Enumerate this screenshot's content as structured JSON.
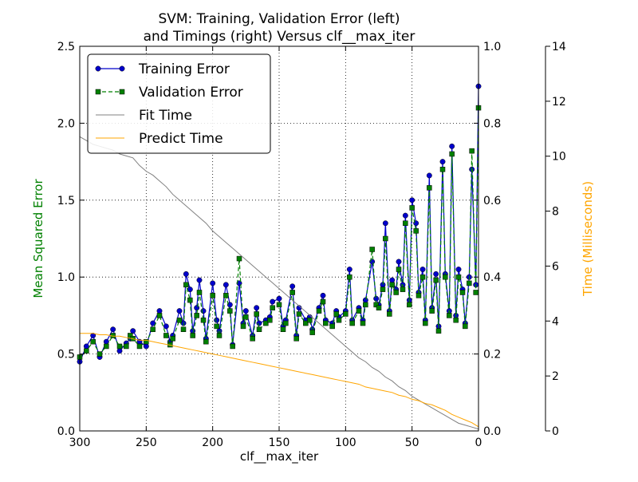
{
  "chart_data": {
    "type": "line",
    "title": "SVM: Training, Validation Error (left)",
    "subtitle": "and Timings (right) Versus clf__max_iter",
    "xlabel": "clf__max_iter",
    "ylabel_left": "Mean Squared Error",
    "ylabel_right": "Time (Milliseconds)",
    "xlim": [
      300,
      0
    ],
    "x_inverted": true,
    "ylim_left": [
      0.0,
      2.5
    ],
    "ylim_mid": [
      0.0,
      1.0
    ],
    "ylim_right": [
      0,
      14
    ],
    "grid": true,
    "legend_position": "top-left",
    "x_ticks": [
      "300",
      "250",
      "200",
      "150",
      "100",
      "50",
      "0"
    ],
    "y_left_ticks": [
      "0.0",
      "0.5",
      "1.0",
      "1.5",
      "2.0",
      "2.5"
    ],
    "y_mid_ticks": [
      "0.0",
      "0.2",
      "0.4",
      "0.6",
      "0.8",
      "1.0"
    ],
    "y_right_ticks": [
      "0",
      "2",
      "4",
      "6",
      "8",
      "10",
      "12",
      "14"
    ],
    "colors": {
      "training": "#0000cc",
      "validation": "#008000",
      "fit_time": "#808080",
      "predict_time": "#ffa500",
      "ylabel_left": "#008000",
      "ylabel_right": "#ffa500"
    },
    "series": [
      {
        "name": "Training Error",
        "axis": "left",
        "style": "line-circle",
        "x": [
          300,
          295,
          290,
          285,
          280,
          275,
          270,
          265,
          262,
          260,
          255,
          250,
          245,
          240,
          235,
          232,
          230,
          225,
          222,
          220,
          217,
          215,
          212,
          210,
          207,
          205,
          200,
          197,
          195,
          190,
          187,
          185,
          180,
          177,
          175,
          170,
          167,
          165,
          160,
          157,
          155,
          150,
          147,
          145,
          140,
          137,
          135,
          130,
          127,
          125,
          120,
          117,
          115,
          110,
          107,
          105,
          100,
          97,
          95,
          90,
          87,
          85,
          80,
          77,
          75,
          72,
          70,
          67,
          65,
          62,
          60,
          57,
          55,
          52,
          50,
          47,
          45,
          42,
          40,
          37,
          35,
          32,
          30,
          27,
          25,
          22,
          20,
          17,
          15,
          12,
          10,
          7,
          5,
          2,
          0
        ],
        "y": [
          0.45,
          0.55,
          0.62,
          0.48,
          0.58,
          0.66,
          0.52,
          0.57,
          0.6,
          0.65,
          0.58,
          0.55,
          0.7,
          0.78,
          0.68,
          0.58,
          0.62,
          0.78,
          0.7,
          1.02,
          0.92,
          0.65,
          0.8,
          0.98,
          0.78,
          0.6,
          0.96,
          0.72,
          0.65,
          0.95,
          0.82,
          0.56,
          0.96,
          0.7,
          0.78,
          0.62,
          0.8,
          0.7,
          0.72,
          0.74,
          0.84,
          0.86,
          0.68,
          0.72,
          0.94,
          0.62,
          0.8,
          0.72,
          0.74,
          0.66,
          0.8,
          0.88,
          0.72,
          0.7,
          0.78,
          0.74,
          0.78,
          1.05,
          0.72,
          0.8,
          0.72,
          0.85,
          1.1,
          0.86,
          0.82,
          0.95,
          1.35,
          0.78,
          0.98,
          0.92,
          1.1,
          0.95,
          1.4,
          0.85,
          1.5,
          1.35,
          0.9,
          1.05,
          0.72,
          1.66,
          0.8,
          1.02,
          0.68,
          1.75,
          1.02,
          0.78,
          1.85,
          0.75,
          1.05,
          0.92,
          0.7,
          1.0,
          1.7,
          0.95,
          2.24
        ]
      },
      {
        "name": "Validation Error",
        "axis": "left",
        "style": "dashed-square",
        "x": [
          300,
          295,
          290,
          285,
          280,
          275,
          270,
          265,
          262,
          260,
          255,
          250,
          245,
          240,
          235,
          232,
          230,
          225,
          222,
          220,
          217,
          215,
          212,
          210,
          207,
          205,
          200,
          197,
          195,
          190,
          187,
          185,
          180,
          177,
          175,
          170,
          167,
          165,
          160,
          157,
          155,
          150,
          147,
          145,
          140,
          137,
          135,
          130,
          127,
          125,
          120,
          117,
          115,
          110,
          107,
          105,
          100,
          97,
          95,
          90,
          87,
          85,
          80,
          77,
          75,
          72,
          70,
          67,
          65,
          62,
          60,
          57,
          55,
          52,
          50,
          47,
          45,
          42,
          40,
          37,
          35,
          32,
          30,
          27,
          25,
          22,
          20,
          17,
          15,
          12,
          10,
          7,
          5,
          2,
          0
        ],
        "y": [
          0.48,
          0.52,
          0.58,
          0.5,
          0.55,
          0.62,
          0.55,
          0.55,
          0.62,
          0.6,
          0.55,
          0.58,
          0.66,
          0.75,
          0.62,
          0.56,
          0.6,
          0.72,
          0.66,
          0.95,
          0.85,
          0.62,
          0.75,
          0.9,
          0.72,
          0.58,
          0.88,
          0.68,
          0.62,
          0.88,
          0.78,
          0.55,
          1.12,
          0.68,
          0.74,
          0.6,
          0.76,
          0.66,
          0.7,
          0.72,
          0.8,
          0.82,
          0.66,
          0.7,
          0.9,
          0.6,
          0.76,
          0.7,
          0.72,
          0.64,
          0.78,
          0.84,
          0.7,
          0.68,
          0.76,
          0.72,
          0.76,
          1.0,
          0.7,
          0.78,
          0.7,
          0.82,
          1.18,
          0.82,
          0.8,
          0.92,
          1.25,
          0.76,
          0.95,
          0.9,
          1.05,
          0.92,
          1.35,
          0.82,
          1.45,
          1.3,
          0.88,
          1.0,
          0.7,
          1.58,
          0.78,
          0.98,
          0.65,
          1.7,
          1.0,
          0.75,
          1.8,
          0.72,
          1.0,
          0.9,
          0.68,
          0.96,
          1.82,
          0.9,
          2.1
        ]
      },
      {
        "name": "Fit Time",
        "axis": "mid",
        "style": "line-thin",
        "x": [
          300,
          295,
          290,
          285,
          280,
          275,
          270,
          265,
          260,
          255,
          250,
          245,
          240,
          235,
          230,
          225,
          220,
          215,
          210,
          205,
          200,
          195,
          190,
          185,
          180,
          175,
          170,
          165,
          160,
          155,
          150,
          145,
          140,
          135,
          130,
          125,
          120,
          115,
          110,
          105,
          100,
          95,
          90,
          85,
          80,
          75,
          70,
          65,
          60,
          55,
          50,
          45,
          40,
          35,
          30,
          25,
          20,
          15,
          10,
          5,
          0
        ],
        "y": [
          0.765,
          0.755,
          0.745,
          0.74,
          0.735,
          0.73,
          0.72,
          0.715,
          0.71,
          0.69,
          0.675,
          0.665,
          0.65,
          0.635,
          0.615,
          0.6,
          0.585,
          0.57,
          0.555,
          0.54,
          0.52,
          0.505,
          0.49,
          0.475,
          0.46,
          0.445,
          0.43,
          0.415,
          0.4,
          0.385,
          0.37,
          0.355,
          0.34,
          0.325,
          0.31,
          0.295,
          0.28,
          0.265,
          0.25,
          0.235,
          0.22,
          0.205,
          0.19,
          0.18,
          0.165,
          0.155,
          0.14,
          0.13,
          0.115,
          0.105,
          0.09,
          0.08,
          0.07,
          0.06,
          0.05,
          0.04,
          0.03,
          0.02,
          0.015,
          0.01,
          0.005
        ]
      },
      {
        "name": "Predict Time",
        "axis": "right",
        "style": "line-thin",
        "x": [
          300,
          295,
          290,
          285,
          280,
          275,
          270,
          265,
          260,
          255,
          250,
          245,
          240,
          235,
          230,
          225,
          220,
          215,
          210,
          205,
          200,
          195,
          190,
          185,
          180,
          175,
          170,
          165,
          160,
          155,
          150,
          145,
          140,
          135,
          130,
          125,
          120,
          115,
          110,
          105,
          100,
          95,
          90,
          85,
          80,
          75,
          70,
          65,
          60,
          55,
          50,
          45,
          40,
          35,
          30,
          25,
          20,
          15,
          10,
          5,
          0
        ],
        "y": [
          3.55,
          3.55,
          3.55,
          3.5,
          3.5,
          3.45,
          3.45,
          3.4,
          3.35,
          3.3,
          3.3,
          3.25,
          3.2,
          3.15,
          3.1,
          3.05,
          3.0,
          2.95,
          2.9,
          2.85,
          2.8,
          2.75,
          2.7,
          2.65,
          2.6,
          2.55,
          2.5,
          2.45,
          2.4,
          2.35,
          2.3,
          2.25,
          2.2,
          2.15,
          2.1,
          2.05,
          2.0,
          1.95,
          1.9,
          1.85,
          1.8,
          1.75,
          1.7,
          1.6,
          1.55,
          1.5,
          1.45,
          1.4,
          1.3,
          1.25,
          1.15,
          1.1,
          1.0,
          0.95,
          0.85,
          0.75,
          0.6,
          0.5,
          0.4,
          0.3,
          0.15
        ]
      }
    ]
  }
}
